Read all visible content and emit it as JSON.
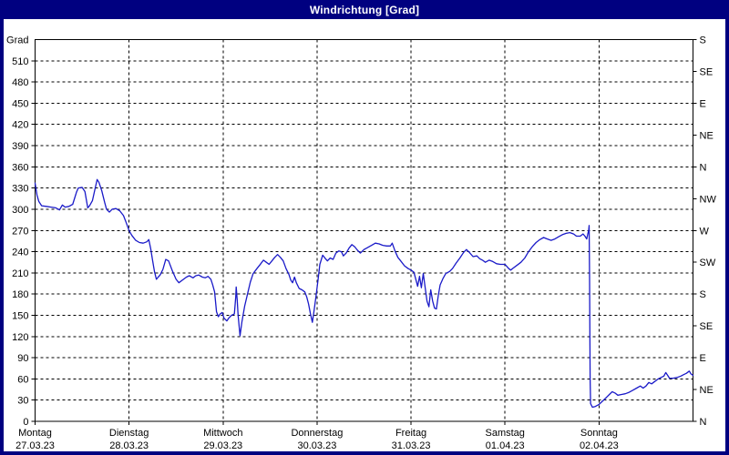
{
  "window": {
    "title": "Windrichtung [Grad]"
  },
  "chart_data": {
    "type": "line",
    "title": "Windrichtung [Grad]",
    "ylabel": "Grad",
    "grid": "dashed",
    "line_color": "#1a1ac8",
    "axis_color": "#000000",
    "frame_color": "#000080",
    "y_axis": {
      "label": "Grad",
      "min": 0,
      "max": 540,
      "tick_step": 30,
      "ticks": [
        0,
        30,
        60,
        90,
        120,
        150,
        180,
        210,
        240,
        270,
        300,
        330,
        360,
        390,
        420,
        450,
        480,
        510
      ]
    },
    "right_axis": {
      "tick_step_deg": 45,
      "labels_top_to_bottom": [
        "S",
        "SE",
        "E",
        "NE",
        "N",
        "NW",
        "W",
        "SW",
        "S",
        "SE",
        "E",
        "NE",
        "N"
      ]
    },
    "x_axis": {
      "unit": "days",
      "range_days": [
        0,
        7
      ],
      "days": [
        {
          "name": "Montag",
          "date": "27.03.23"
        },
        {
          "name": "Dienstag",
          "date": "28.03.23"
        },
        {
          "name": "Mittwoch",
          "date": "29.03.23"
        },
        {
          "name": "Donnerstag",
          "date": "30.03.23"
        },
        {
          "name": "Freitag",
          "date": "31.03.23"
        },
        {
          "name": "Samstag",
          "date": "01.04.23"
        },
        {
          "name": "Sonntag",
          "date": "02.04.23"
        }
      ]
    },
    "series": [
      {
        "name": "Windrichtung",
        "color": "#1a1ac8",
        "points": [
          [
            0.0,
            337
          ],
          [
            0.02,
            320
          ],
          [
            0.04,
            311
          ],
          [
            0.07,
            305
          ],
          [
            0.12,
            304
          ],
          [
            0.17,
            303
          ],
          [
            0.22,
            302
          ],
          [
            0.26,
            299
          ],
          [
            0.29,
            306
          ],
          [
            0.32,
            303
          ],
          [
            0.36,
            304
          ],
          [
            0.4,
            307
          ],
          [
            0.44,
            324
          ],
          [
            0.46,
            330
          ],
          [
            0.5,
            331
          ],
          [
            0.53,
            325
          ],
          [
            0.56,
            302
          ],
          [
            0.58,
            305
          ],
          [
            0.61,
            312
          ],
          [
            0.64,
            330
          ],
          [
            0.66,
            342
          ],
          [
            0.68,
            338
          ],
          [
            0.71,
            326
          ],
          [
            0.74,
            310
          ],
          [
            0.76,
            300
          ],
          [
            0.79,
            296
          ],
          [
            0.82,
            300
          ],
          [
            0.86,
            301
          ],
          [
            0.9,
            298
          ],
          [
            0.94,
            291
          ],
          [
            0.97,
            281
          ],
          [
            1.0,
            270
          ],
          [
            1.03,
            263
          ],
          [
            1.07,
            256
          ],
          [
            1.11,
            253
          ],
          [
            1.15,
            252
          ],
          [
            1.19,
            254
          ],
          [
            1.21,
            257
          ],
          [
            1.23,
            244
          ],
          [
            1.25,
            228
          ],
          [
            1.27,
            212
          ],
          [
            1.29,
            201
          ],
          [
            1.31,
            204
          ],
          [
            1.33,
            207
          ],
          [
            1.36,
            215
          ],
          [
            1.39,
            229
          ],
          [
            1.42,
            227
          ],
          [
            1.46,
            213
          ],
          [
            1.5,
            201
          ],
          [
            1.53,
            196
          ],
          [
            1.57,
            200
          ],
          [
            1.61,
            204
          ],
          [
            1.64,
            206
          ],
          [
            1.68,
            203
          ],
          [
            1.71,
            206
          ],
          [
            1.74,
            207
          ],
          [
            1.78,
            204
          ],
          [
            1.81,
            203
          ],
          [
            1.84,
            205
          ],
          [
            1.87,
            201
          ],
          [
            1.89,
            193
          ],
          [
            1.91,
            183
          ],
          [
            1.93,
            155
          ],
          [
            1.95,
            148
          ],
          [
            1.97,
            152
          ],
          [
            1.99,
            154
          ],
          [
            2.01,
            146
          ],
          [
            2.04,
            142
          ],
          [
            2.06,
            146
          ],
          [
            2.09,
            150
          ],
          [
            2.12,
            152
          ],
          [
            2.135,
            176
          ],
          [
            2.14,
            190
          ],
          [
            2.15,
            172
          ],
          [
            2.16,
            150
          ],
          [
            2.18,
            121
          ],
          [
            2.2,
            140
          ],
          [
            2.23,
            163
          ],
          [
            2.26,
            180
          ],
          [
            2.29,
            197
          ],
          [
            2.32,
            209
          ],
          [
            2.36,
            216
          ],
          [
            2.39,
            221
          ],
          [
            2.43,
            228
          ],
          [
            2.46,
            225
          ],
          [
            2.49,
            222
          ],
          [
            2.52,
            227
          ],
          [
            2.55,
            232
          ],
          [
            2.58,
            236
          ],
          [
            2.61,
            232
          ],
          [
            2.64,
            227
          ],
          [
            2.67,
            216
          ],
          [
            2.7,
            208
          ],
          [
            2.72,
            200
          ],
          [
            2.74,
            196
          ],
          [
            2.76,
            204
          ],
          [
            2.78,
            196
          ],
          [
            2.81,
            188
          ],
          [
            2.84,
            186
          ],
          [
            2.87,
            183
          ],
          [
            2.89,
            176
          ],
          [
            2.91,
            166
          ],
          [
            2.93,
            152
          ],
          [
            2.95,
            140
          ],
          [
            2.97,
            158
          ],
          [
            2.99,
            178
          ],
          [
            3.01,
            200
          ],
          [
            3.03,
            222
          ],
          [
            3.06,
            235
          ],
          [
            3.09,
            230
          ],
          [
            3.11,
            227
          ],
          [
            3.14,
            231
          ],
          [
            3.17,
            229
          ],
          [
            3.2,
            238
          ],
          [
            3.23,
            241
          ],
          [
            3.26,
            240
          ],
          [
            3.28,
            234
          ],
          [
            3.31,
            238
          ],
          [
            3.34,
            245
          ],
          [
            3.37,
            250
          ],
          [
            3.4,
            247
          ],
          [
            3.43,
            242
          ],
          [
            3.46,
            238
          ],
          [
            3.5,
            243
          ],
          [
            3.54,
            246
          ],
          [
            3.58,
            249
          ],
          [
            3.62,
            252
          ],
          [
            3.66,
            251
          ],
          [
            3.7,
            249
          ],
          [
            3.74,
            248
          ],
          [
            3.78,
            248
          ],
          [
            3.8,
            252
          ],
          [
            3.83,
            241
          ],
          [
            3.86,
            232
          ],
          [
            3.89,
            227
          ],
          [
            3.93,
            220
          ],
          [
            3.97,
            216
          ],
          [
            4.0,
            214
          ],
          [
            4.03,
            211
          ],
          [
            4.06,
            196
          ],
          [
            4.07,
            191
          ],
          [
            4.09,
            205
          ],
          [
            4.11,
            189
          ],
          [
            4.13,
            209
          ],
          [
            4.15,
            190
          ],
          [
            4.17,
            170
          ],
          [
            4.19,
            162
          ],
          [
            4.21,
            186
          ],
          [
            4.23,
            170
          ],
          [
            4.25,
            160
          ],
          [
            4.27,
            159
          ],
          [
            4.29,
            178
          ],
          [
            4.31,
            193
          ],
          [
            4.34,
            202
          ],
          [
            4.37,
            209
          ],
          [
            4.41,
            212
          ],
          [
            4.44,
            216
          ],
          [
            4.48,
            224
          ],
          [
            4.52,
            231
          ],
          [
            4.56,
            239
          ],
          [
            4.59,
            243
          ],
          [
            4.62,
            239
          ],
          [
            4.66,
            233
          ],
          [
            4.7,
            234
          ],
          [
            4.73,
            230
          ],
          [
            4.76,
            228
          ],
          [
            4.79,
            225
          ],
          [
            4.83,
            228
          ],
          [
            4.87,
            226
          ],
          [
            4.91,
            223
          ],
          [
            4.95,
            222
          ],
          [
            5.0,
            222
          ],
          [
            5.04,
            216
          ],
          [
            5.06,
            214
          ],
          [
            5.09,
            217
          ],
          [
            5.13,
            221
          ],
          [
            5.17,
            225
          ],
          [
            5.21,
            231
          ],
          [
            5.25,
            240
          ],
          [
            5.29,
            247
          ],
          [
            5.33,
            253
          ],
          [
            5.37,
            257
          ],
          [
            5.41,
            260
          ],
          [
            5.45,
            258
          ],
          [
            5.49,
            256
          ],
          [
            5.53,
            258
          ],
          [
            5.57,
            261
          ],
          [
            5.61,
            264
          ],
          [
            5.65,
            266
          ],
          [
            5.69,
            267
          ],
          [
            5.73,
            265
          ],
          [
            5.76,
            262
          ],
          [
            5.8,
            262
          ],
          [
            5.83,
            265
          ],
          [
            5.85,
            262
          ],
          [
            5.87,
            258
          ],
          [
            5.88,
            265
          ],
          [
            5.89,
            270
          ],
          [
            5.895,
            277
          ],
          [
            5.9,
            200
          ],
          [
            5.905,
            60
          ],
          [
            5.91,
            25
          ],
          [
            5.93,
            20
          ],
          [
            5.96,
            21
          ],
          [
            6.0,
            24
          ],
          [
            6.04,
            29
          ],
          [
            6.08,
            34
          ],
          [
            6.11,
            38
          ],
          [
            6.14,
            42
          ],
          [
            6.17,
            40
          ],
          [
            6.2,
            37
          ],
          [
            6.24,
            38
          ],
          [
            6.28,
            39
          ],
          [
            6.32,
            41
          ],
          [
            6.36,
            44
          ],
          [
            6.4,
            47
          ],
          [
            6.44,
            50
          ],
          [
            6.47,
            47
          ],
          [
            6.5,
            50
          ],
          [
            6.53,
            55
          ],
          [
            6.56,
            53
          ],
          [
            6.6,
            57
          ],
          [
            6.63,
            60
          ],
          [
            6.66,
            62
          ],
          [
            6.69,
            64
          ],
          [
            6.71,
            69
          ],
          [
            6.73,
            65
          ],
          [
            6.75,
            61
          ],
          [
            6.79,
            61
          ],
          [
            6.83,
            62
          ],
          [
            6.87,
            64
          ],
          [
            6.9,
            66
          ],
          [
            6.93,
            68
          ],
          [
            6.96,
            71
          ],
          [
            6.98,
            67
          ],
          [
            7.0,
            65
          ]
        ]
      }
    ]
  }
}
